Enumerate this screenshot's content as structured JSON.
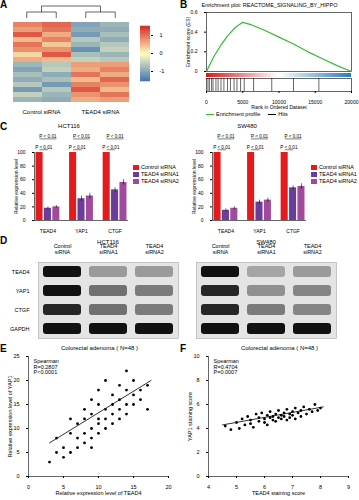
{
  "chart_data": [
    {
      "panel": "A",
      "type": "heatmap",
      "column_groups": [
        "Control siRNA",
        "Control siRNA",
        "TEAD4 siRNA",
        "TEAD4 siRNA"
      ],
      "cells": [
        [
          0.9,
          1.1,
          -1.0,
          -0.8
        ],
        [
          0.7,
          1.0,
          -0.9,
          -0.9
        ],
        [
          1.2,
          0.6,
          -1.1,
          -0.7
        ],
        [
          0.5,
          0.9,
          -0.6,
          -0.9
        ],
        [
          1.0,
          0.4,
          -0.8,
          -0.6
        ],
        [
          0.8,
          0.8,
          -1.2,
          -0.5
        ],
        [
          0.3,
          1.2,
          -0.7,
          -0.8
        ],
        [
          0.6,
          0.5,
          -0.5,
          -0.6
        ],
        [
          -0.8,
          -0.6,
          0.7,
          0.7
        ],
        [
          -1.0,
          -0.5,
          0.6,
          0.9
        ],
        [
          -0.7,
          -0.9,
          1.0,
          0.6
        ],
        [
          -0.9,
          -0.7,
          0.5,
          1.1
        ],
        [
          -0.6,
          -1.1,
          0.9,
          0.8
        ],
        [
          -1.1,
          -0.6,
          1.2,
          0.5
        ],
        [
          -0.5,
          -0.8,
          0.8,
          1.0
        ],
        [
          -0.8,
          -0.9,
          0.6,
          0.7
        ]
      ],
      "colorbar": {
        "range": [
          -1.5,
          1.5
        ],
        "ticks": [
          -1,
          0,
          1
        ],
        "colors": [
          "#4575b4",
          "#ffffbf",
          "#d73027"
        ]
      }
    },
    {
      "panel": "B",
      "type": "line",
      "title": "Enrichment plot: REACTOME_SIGNALING_BY_HIPPO",
      "x_label": "Rank in Ordered Dataset",
      "y_label": "Enrichment score (ES)",
      "x": [
        0,
        1000,
        2000,
        3000,
        4000,
        5000,
        6000,
        8000,
        10000,
        12000,
        14000,
        16000,
        18000,
        20000
      ],
      "series": [
        {
          "name": "Enrichment profile",
          "color": "#33bb33",
          "values": [
            0,
            0.15,
            0.27,
            0.37,
            0.45,
            0.5,
            0.48,
            0.42,
            0.35,
            0.28,
            0.2,
            0.13,
            0.06,
            0
          ]
        }
      ],
      "hits": {
        "name": "Hits",
        "color": "#000000",
        "x": [
          200,
          400,
          700,
          900,
          1300,
          1600,
          2000,
          2400,
          2900,
          3300,
          3800,
          4200,
          4700,
          5200,
          6500,
          9000,
          12000,
          15500
        ]
      },
      "xlim": [
        0,
        20000
      ],
      "xticks": [
        0,
        5000,
        10000,
        15000,
        20000
      ],
      "ylim": [
        0,
        0.6
      ],
      "yticks": [
        0,
        0.2,
        0.4,
        0.6
      ]
    },
    {
      "panel": "C",
      "type": "bar",
      "title": "HCT116",
      "y_label": "Relative expression level",
      "legend": "right",
      "categories": [
        "TEAD4",
        "YAP1",
        "CTGF"
      ],
      "series": [
        {
          "name": "Control siRNA",
          "color": "#e41a1c",
          "values": [
            100,
            100,
            100
          ],
          "errors": [
            0,
            0,
            0
          ]
        },
        {
          "name": "TEAD4 siRNA1",
          "color": "#6a3d9a",
          "values": [
            18,
            32,
            45
          ],
          "errors": [
            2,
            4,
            3
          ]
        },
        {
          "name": "TEAD4 siRNA2",
          "color": "#a04a9c",
          "values": [
            20,
            36,
            56
          ],
          "errors": [
            2,
            4,
            4
          ]
        }
      ],
      "p_values": [
        [
          "P < 0.01",
          "P < 0.01"
        ],
        [
          "P < 0.01",
          "P < 0.01"
        ],
        [
          "P < 0.01",
          "P < 0.01"
        ]
      ],
      "ylim": [
        0,
        100
      ],
      "yticks": [
        0,
        20,
        40,
        60,
        80,
        100
      ]
    },
    {
      "type": "bar",
      "title": "SW480",
      "y_label": "Relative expression level",
      "legend": "right",
      "categories": [
        "TEAD4",
        "YAP1",
        "CTGF"
      ],
      "series": [
        {
          "name": "Control siRNA",
          "color": "#e41a1c",
          "values": [
            100,
            100,
            100
          ],
          "errors": [
            0,
            0,
            0
          ]
        },
        {
          "name": "TEAD4 siRNA1",
          "color": "#6a3d9a",
          "values": [
            15,
            27,
            48
          ],
          "errors": [
            2,
            3,
            3
          ]
        },
        {
          "name": "TEAD4 siRNA2",
          "color": "#a04a9c",
          "values": [
            18,
            30,
            50
          ],
          "errors": [
            2,
            3,
            4
          ]
        }
      ],
      "p_values": [
        [
          "P < 0.01",
          "P < 0.01"
        ],
        [
          "P < 0.01",
          "P < 0.01"
        ],
        [
          "P < 0.01",
          "P < 0.01"
        ]
      ],
      "ylim": [
        0,
        100
      ],
      "yticks": [
        0,
        20,
        40,
        60,
        80,
        100
      ]
    },
    {
      "panel": "D",
      "type": "blot",
      "lanes": [
        "Control siRNA",
        "TEAD4 siRNA1",
        "TEAD4 siRNA2"
      ],
      "proteins": [
        "TEAD4",
        "YAP1",
        "CTGF",
        "GAPDH"
      ],
      "intensity_range": [
        0,
        1
      ],
      "blots": [
        {
          "title": "HCT116",
          "intensity": [
            [
              1,
              0.35,
              0.35
            ],
            [
              1,
              0.55,
              0.5
            ],
            [
              0.9,
              0.55,
              0.5
            ],
            [
              1,
              1,
              1
            ]
          ]
        },
        {
          "title": "SW480",
          "intensity": [
            [
              1,
              0.3,
              0.35
            ],
            [
              0.9,
              0.4,
              0.45
            ],
            [
              0.9,
              0.5,
              0.45
            ],
            [
              1,
              1,
              1
            ]
          ]
        }
      ]
    },
    {
      "panel": "E",
      "type": "scatter",
      "title": "Colorectal adenoma ( N=48 )",
      "annotations": [
        "Spearman",
        "R=0.2807",
        "P<0.0001"
      ],
      "x_label": "Relative expression level of TEAD4",
      "y_label": "Relative expression level of YAP1",
      "color": "#000000",
      "x": [
        3,
        4,
        5,
        5,
        6,
        6,
        7,
        7,
        7,
        8,
        8,
        8,
        8,
        9,
        9,
        9,
        9,
        10,
        10,
        10,
        10,
        10,
        11,
        11,
        11,
        11,
        12,
        12,
        12,
        12,
        13,
        13,
        13,
        13,
        14,
        14,
        14,
        14,
        15,
        15,
        15,
        16,
        16,
        17,
        17,
        6,
        9,
        4
      ],
      "values": [
        3,
        5,
        4,
        6,
        5,
        9,
        6,
        8,
        11,
        7,
        9,
        12,
        14,
        8,
        10,
        13,
        16,
        9,
        11,
        12,
        15,
        18,
        10,
        12,
        14,
        20,
        11,
        13,
        15,
        17,
        12,
        14,
        16,
        19,
        13,
        15,
        18,
        22,
        15,
        17,
        20,
        16,
        18,
        19,
        14,
        12,
        6,
        8
      ],
      "fit_line": {
        "x": [
          3,
          17.5
        ],
        "values": [
          7,
          20
        ]
      },
      "xlim": [
        0,
        20
      ],
      "xticks": [
        0,
        5,
        10,
        15,
        20
      ],
      "ylim": [
        0,
        25
      ],
      "yticks": [
        0,
        5,
        10,
        15,
        20,
        25
      ]
    },
    {
      "panel": "F",
      "type": "scatter",
      "title": "Colorectal adenoma ( N=48 )",
      "annotations": [
        "Spearman",
        "R=0.4704",
        "P=0.0007"
      ],
      "x_label": "TEAD4 staining score",
      "y_label": "YAP1 staining score",
      "color": "#000000",
      "x": [
        4.6,
        4.8,
        5.0,
        5.1,
        5.2,
        5.3,
        5.4,
        5.5,
        5.5,
        5.6,
        5.7,
        5.8,
        5.8,
        5.9,
        6.0,
        6.0,
        6.1,
        6.1,
        6.2,
        6.2,
        6.3,
        6.3,
        6.4,
        6.4,
        6.5,
        6.5,
        6.6,
        6.6,
        6.7,
        6.7,
        6.8,
        6.8,
        6.9,
        6.9,
        7.0,
        7.0,
        7.1,
        7.1,
        7.2,
        7.3,
        7.3,
        7.4,
        7.5,
        7.6,
        7.7,
        7.8,
        7.9,
        8.0
      ],
      "values": [
        4.2,
        3.9,
        4.5,
        4.0,
        4.8,
        4.3,
        5.0,
        4.4,
        4.7,
        4.1,
        5.2,
        4.6,
        4.9,
        5.3,
        4.5,
        4.8,
        5.1,
        4.3,
        5.4,
        4.9,
        4.7,
        5.0,
        5.2,
        4.6,
        5.5,
        4.9,
        5.1,
        4.8,
        5.3,
        5.0,
        4.7,
        5.6,
        5.2,
        4.9,
        5.4,
        5.1,
        5.7,
        4.8,
        5.3,
        5.5,
        5.0,
        5.8,
        5.2,
        5.6,
        5.4,
        6.0,
        5.5,
        5.7
      ],
      "fit_line": {
        "x": [
          4.5,
          8.1
        ],
        "values": [
          4.3,
          5.8
        ]
      },
      "xlim": [
        4,
        9
      ],
      "xticks": [
        4,
        5,
        6,
        7,
        8,
        9
      ],
      "ylim": [
        0,
        10
      ],
      "yticks": [
        0,
        2,
        4,
        6,
        8,
        10
      ]
    }
  ]
}
